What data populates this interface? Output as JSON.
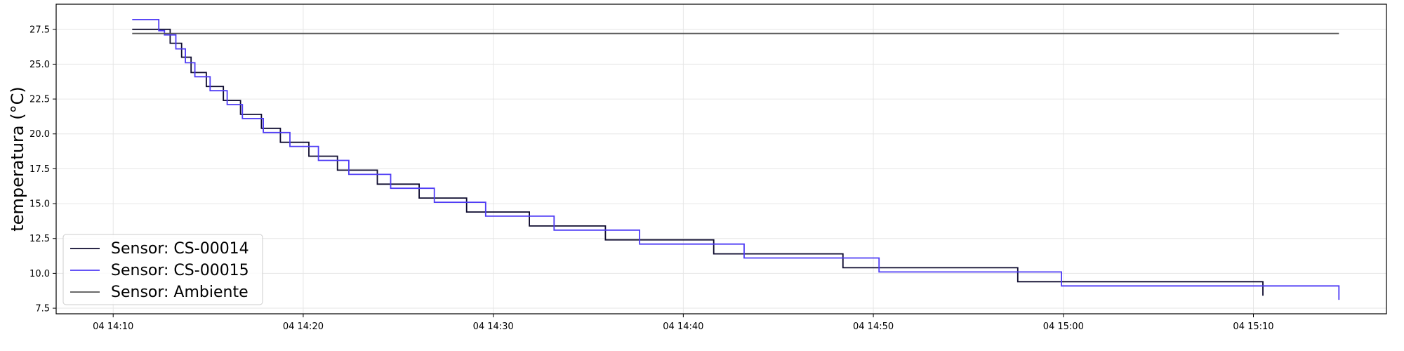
{
  "chart_data": {
    "type": "line",
    "step": "post",
    "title": "",
    "xlabel": "",
    "ylabel": "temperatura (°C)",
    "x_unit": "time",
    "xlim": [
      "14:07",
      "15:17"
    ],
    "ylim": [
      7.1,
      29.3
    ],
    "x_ticks": [
      "14:10",
      "14:20",
      "14:30",
      "14:40",
      "14:50",
      "15:00",
      "15:10"
    ],
    "x_tick_labels": [
      "04 14:10",
      "04 14:20",
      "04 14:30",
      "04 14:40",
      "04 14:50",
      "04 15:00",
      "04 15:10"
    ],
    "y_ticks": [
      7.5,
      10.0,
      12.5,
      15.0,
      17.5,
      20.0,
      22.5,
      25.0,
      27.5
    ],
    "y_tick_labels": [
      "7.5",
      "10.0",
      "12.5",
      "15.0",
      "17.5",
      "20.0",
      "22.5",
      "25.0",
      "27.5"
    ],
    "grid": true,
    "legend_position": "lower left",
    "series": [
      {
        "name": "Sensor: CS-00014",
        "color": "#0d0a2e",
        "x": [
          "14:11.0",
          "14:13.0",
          "14:13.6",
          "14:14.1",
          "14:14.9",
          "14:15.8",
          "14:16.7",
          "14:17.8",
          "14:18.8",
          "14:20.3",
          "14:21.8",
          "14:23.9",
          "14:26.1",
          "14:28.6",
          "14:31.9",
          "14:35.9",
          "14:41.6",
          "14:48.4",
          "14:57.6",
          "15:10.5"
        ],
        "y": [
          27.5,
          26.5,
          25.5,
          24.4,
          23.4,
          22.4,
          21.4,
          20.4,
          19.4,
          18.4,
          17.4,
          16.4,
          15.4,
          14.4,
          13.4,
          12.4,
          11.4,
          10.4,
          9.4,
          8.4
        ]
      },
      {
        "name": "Sensor: CS-00015",
        "color": "#4f3cf5",
        "x": [
          "14:11.0",
          "14:12.4",
          "14:12.7",
          "14:13.3",
          "14:13.8",
          "14:14.3",
          "14:15.1",
          "14:16.0",
          "14:16.8",
          "14:17.9",
          "14:19.3",
          "14:20.8",
          "14:22.4",
          "14:24.6",
          "14:26.9",
          "14:29.6",
          "14:33.2",
          "14:37.7",
          "14:43.2",
          "14:50.3",
          "14:59.9",
          "15:14.5"
        ],
        "y": [
          28.2,
          27.4,
          27.1,
          26.1,
          25.1,
          24.1,
          23.1,
          22.1,
          21.1,
          20.1,
          19.1,
          18.1,
          17.1,
          16.1,
          15.1,
          14.1,
          13.1,
          12.1,
          11.1,
          10.1,
          9.1,
          8.1
        ]
      },
      {
        "name": "Sensor: Ambiente",
        "color": "#555555",
        "x": [
          "14:11.0",
          "15:14.5"
        ],
        "y": [
          27.2,
          27.2
        ]
      }
    ]
  }
}
